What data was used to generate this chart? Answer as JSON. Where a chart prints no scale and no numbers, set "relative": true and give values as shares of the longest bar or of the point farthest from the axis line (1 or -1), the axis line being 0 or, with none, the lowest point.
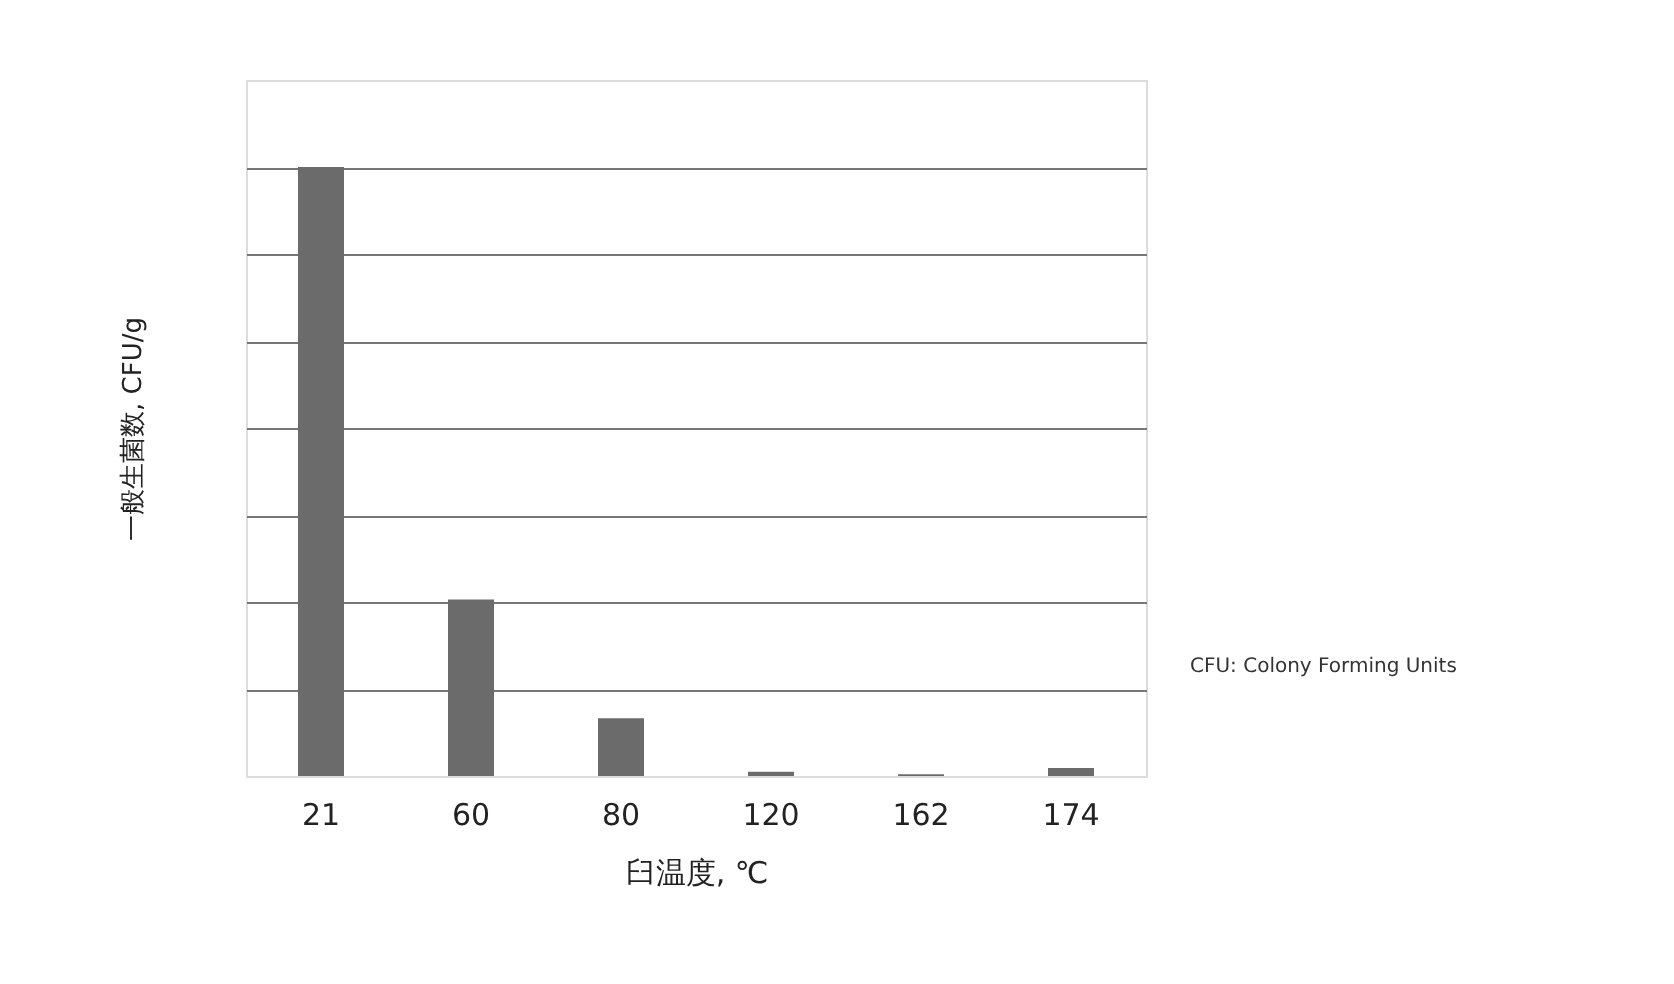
{
  "chart_data": {
    "type": "bar",
    "relative": true,
    "xlabel": "臼温度, ℃",
    "ylabel": "一般生菌数, CFU/g",
    "categories": [
      "21",
      "60",
      "80",
      "120",
      "162",
      "174"
    ],
    "values": [
      1,
      0.29,
      0.095,
      0.007,
      0.003,
      0.013
    ],
    "color": "#6b6b6b",
    "grid": "y",
    "annotations": [
      "CFU: Colony Forming Units"
    ]
  }
}
